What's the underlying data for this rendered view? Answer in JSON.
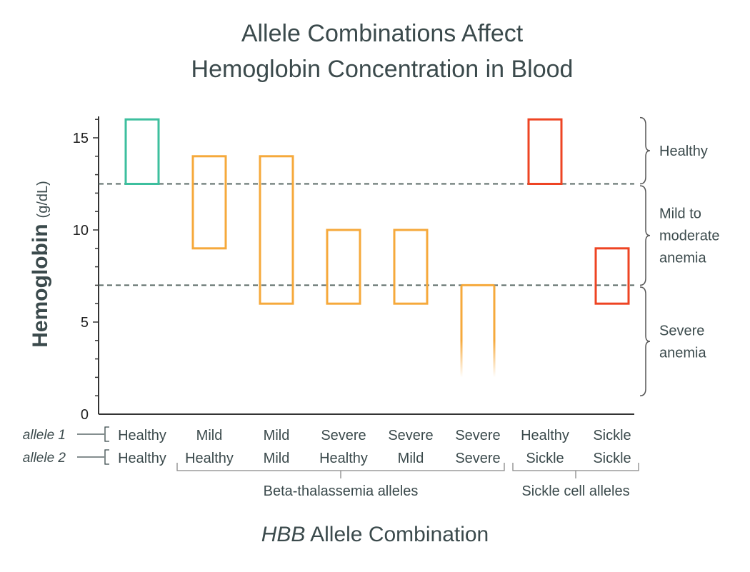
{
  "title_lines": [
    "Allele Combinations Affect",
    "Hemoglobin Concentration in Blood"
  ],
  "chart_data": {
    "type": "floating-bar",
    "ylabel": "Hemoglobin",
    "ylabel_unit": "(g/dL)",
    "ylim": [
      0,
      16
    ],
    "yticks": [
      0,
      5,
      10,
      15
    ],
    "xlabel_gene": "HBB",
    "xlabel_rest": "Allele Combination",
    "row_labels": [
      "allele 1",
      "allele 2"
    ],
    "categories": [
      {
        "allele1": "Healthy",
        "allele2": "Healthy",
        "low": 12.5,
        "high": 16,
        "color": "#3dbf9e",
        "fade": false
      },
      {
        "allele1": "Mild",
        "allele2": "Healthy",
        "low": 9,
        "high": 14,
        "color": "#f6a93b",
        "fade": false
      },
      {
        "allele1": "Mild",
        "allele2": "Mild",
        "low": 6,
        "high": 14,
        "color": "#f6a93b",
        "fade": false
      },
      {
        "allele1": "Severe",
        "allele2": "Healthy",
        "low": 6,
        "high": 10,
        "color": "#f6a93b",
        "fade": false
      },
      {
        "allele1": "Severe",
        "allele2": "Mild",
        "low": 6,
        "high": 10,
        "color": "#f6a93b",
        "fade": false
      },
      {
        "allele1": "Severe",
        "allele2": "Severe",
        "low": 2,
        "high": 7,
        "color": "#f6a93b",
        "fade": true
      },
      {
        "allele1": "Healthy",
        "allele2": "Sickle",
        "low": 12.5,
        "high": 16,
        "color": "#ee4423",
        "fade": false
      },
      {
        "allele1": "Sickle",
        "allele2": "Sickle",
        "low": 6,
        "high": 9,
        "color": "#ee4423",
        "fade": false
      }
    ],
    "thresholds": [
      12.5,
      7
    ],
    "ranges": [
      {
        "label_lines": [
          "Healthy"
        ],
        "from": 12.5,
        "to": 16.1
      },
      {
        "label_lines": [
          "Mild to",
          "moderate",
          "anemia"
        ],
        "from": 7,
        "to": 12.4
      },
      {
        "label_lines": [
          "Severe",
          "anemia"
        ],
        "from": 1,
        "to": 6.9
      }
    ],
    "groups": [
      {
        "label": "Beta-thalassemia alleles",
        "first": 1,
        "last": 5
      },
      {
        "label": "Sickle cell alleles",
        "first": 6,
        "last": 7
      }
    ]
  }
}
